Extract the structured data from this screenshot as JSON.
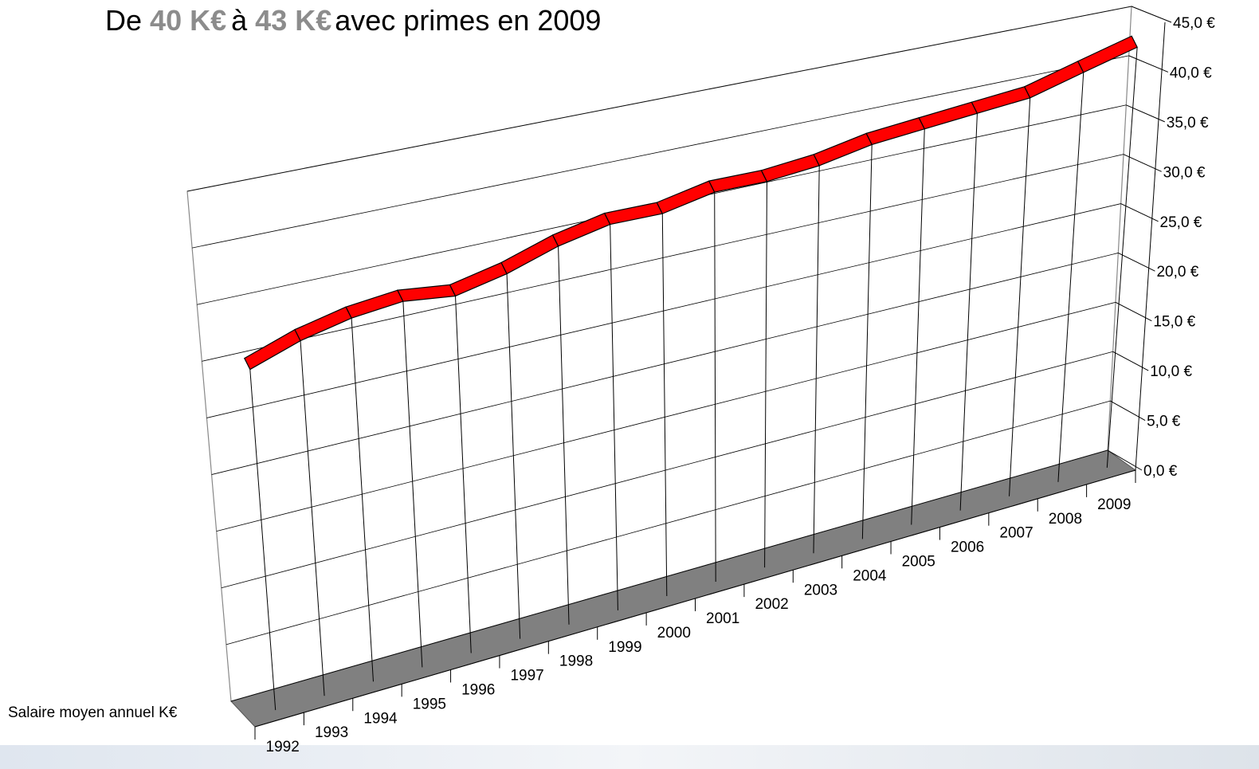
{
  "chart_data": {
    "type": "line3d",
    "title": {
      "prefix": "De",
      "from": "40 K€",
      "middle": "à",
      "to": "43 K€",
      "suffix": "avec primes en 2009"
    },
    "categories": [
      "1992",
      "1993",
      "1994",
      "1995",
      "1996",
      "1997",
      "1998",
      "1999",
      "2000",
      "2001",
      "2002",
      "2003",
      "2004",
      "2005",
      "2006",
      "2007",
      "2008",
      "2009"
    ],
    "series": [
      {
        "name": "Salaire moyen annuel K€",
        "color": "#ff0000",
        "values": [
          30,
          31.5,
          32.5,
          33,
          32.5,
          33.5,
          35,
          36,
          36,
          37,
          37,
          37.5,
          38.5,
          39,
          39.5,
          40,
          41.5,
          43
        ]
      }
    ],
    "ylim": [
      0,
      45
    ],
    "yticks": [
      {
        "value": 0,
        "label": "0,0 €"
      },
      {
        "value": 5,
        "label": "5,0 €"
      },
      {
        "value": 10,
        "label": "10,0 €"
      },
      {
        "value": 15,
        "label": "15,0 €"
      },
      {
        "value": 20,
        "label": "20,0 €"
      },
      {
        "value": 25,
        "label": "25,0 €"
      },
      {
        "value": 30,
        "label": "30,0 €"
      },
      {
        "value": 35,
        "label": "35,0 €"
      },
      {
        "value": 40,
        "label": "40,0 €"
      },
      {
        "value": 45,
        "label": "45,0 €"
      }
    ],
    "grid": true
  }
}
